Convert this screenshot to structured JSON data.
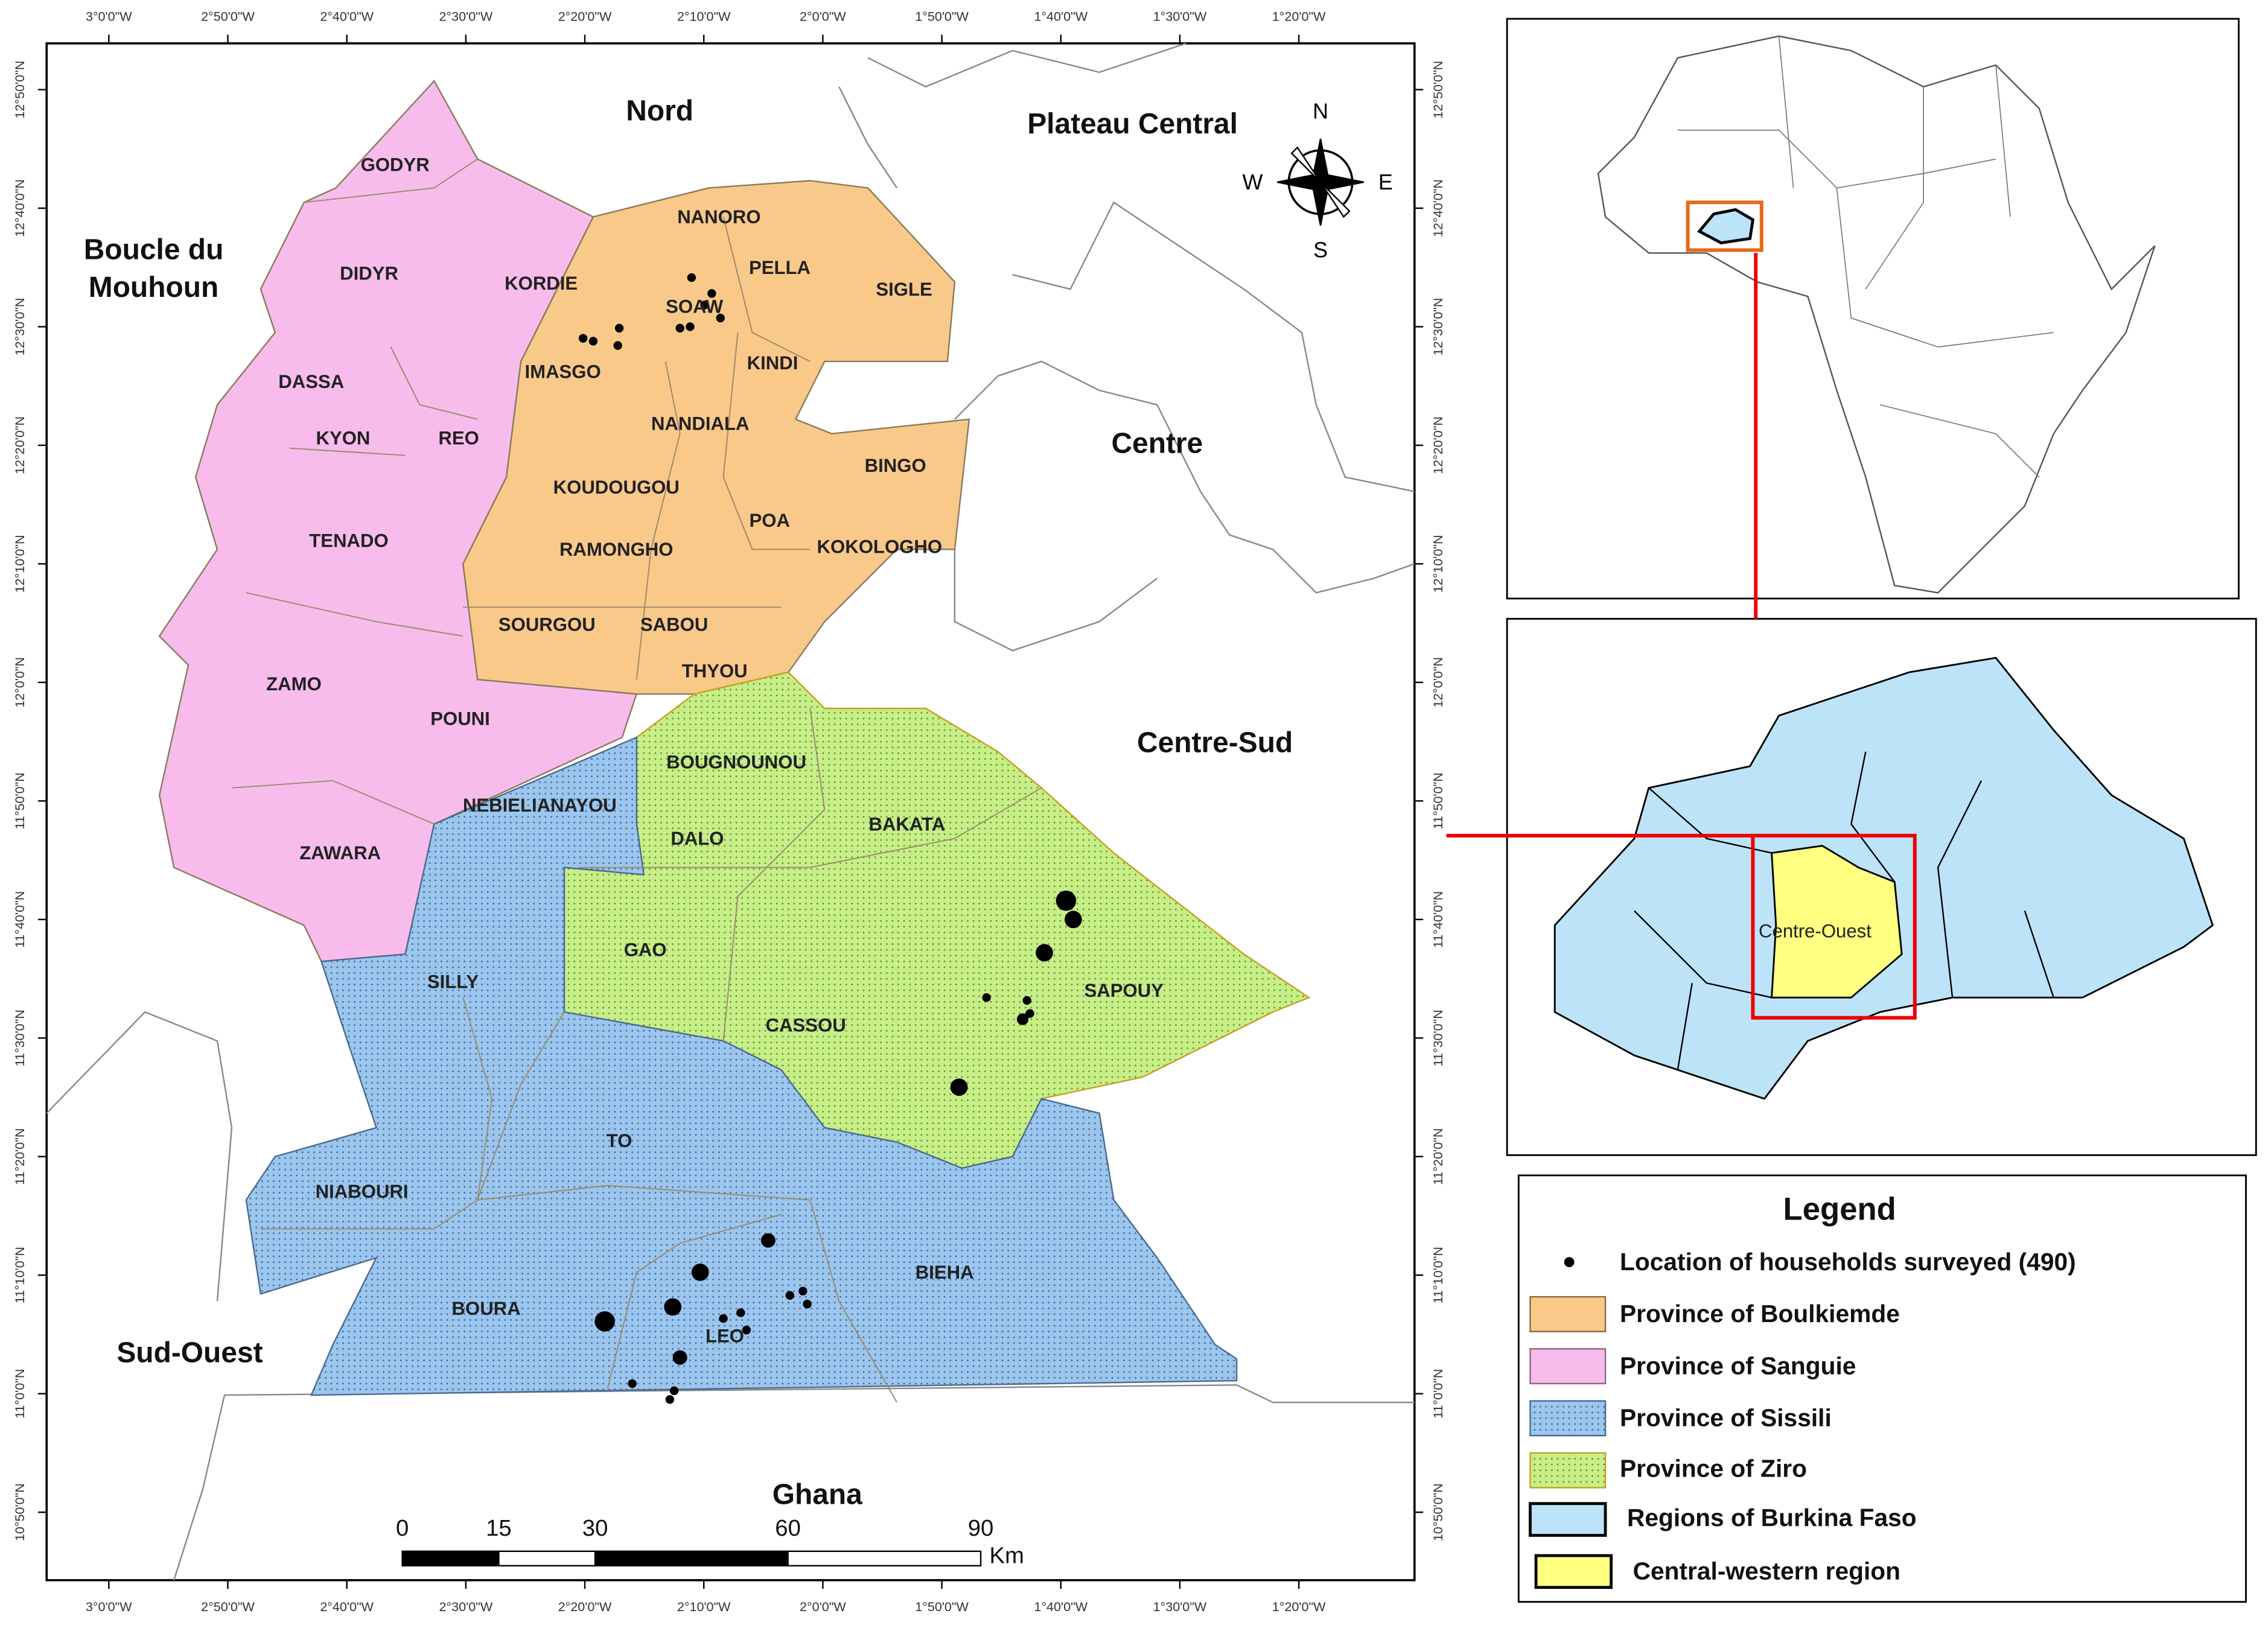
{
  "map": {
    "lon_ticks": [
      "3°0'0\"W",
      "2°50'0\"W",
      "2°40'0\"W",
      "2°30'0\"W",
      "2°20'0\"W",
      "2°10'0\"W",
      "2°0'0\"W",
      "1°50'0\"W",
      "1°40'0\"W",
      "1°30'0\"W",
      "1°20'0\"W"
    ],
    "lat_ticks": [
      "12°50'0\"N",
      "12°40'0\"N",
      "12°30'0\"N",
      "12°20'0\"N",
      "12°10'0\"N",
      "12°0'0\"N",
      "11°50'0\"N",
      "11°40'0\"N",
      "11°30'0\"N",
      "11°20'0\"N",
      "11°10'0\"N",
      "11°0'0\"N",
      "10°50'0\"N"
    ],
    "regions": [
      {
        "lines": [
          "Nord"
        ]
      },
      {
        "lines": [
          "Plateau Central"
        ]
      },
      {
        "lines": [
          "Boucle du",
          "Mouhoun"
        ]
      },
      {
        "lines": [
          "Centre"
        ]
      },
      {
        "lines": [
          "Centre-Sud"
        ]
      },
      {
        "lines": [
          "Sud-Ouest"
        ]
      },
      {
        "lines": [
          "Ghana"
        ]
      }
    ],
    "communes": [
      "GODYR",
      "DIDYR",
      "KORDIE",
      "DASSA",
      "KYON",
      "REO",
      "TENADO",
      "ZAMO",
      "POUNI",
      "ZAWARA",
      "NANORO",
      "PELLA",
      "SIGLE",
      "SOAW",
      "IMASGO",
      "KINDI",
      "NANDIALA",
      "BINGO",
      "KOUDOUGOU",
      "POA",
      "KOKOLOGHO",
      "RAMONGHO",
      "SOURGOU",
      "SABOU",
      "THYOU",
      "BOUGNOUNOU",
      "NEBIELIANAYOU",
      "DALO",
      "BAKATA",
      "GAO",
      "SILLY",
      "SAPOUY",
      "CASSOU",
      "TO",
      "NIABOURI",
      "BIEHA",
      "BOURA",
      "LEO"
    ],
    "compass": [
      "N",
      "E",
      "S",
      "W"
    ],
    "scale_bar": {
      "ticks": [
        0,
        15,
        30,
        60,
        90
      ],
      "unit": "Km"
    }
  },
  "inset_burkina": {
    "label": "Centre-Ouest"
  },
  "legend": {
    "title": "Legend",
    "items": [
      "Location of households surveyed (490)",
      "Province of Boulkiemde",
      "Province of Sanguie",
      "Province of Sissili",
      "Province of Ziro",
      "Regions of Burkina Faso",
      "Central-western region"
    ]
  }
}
